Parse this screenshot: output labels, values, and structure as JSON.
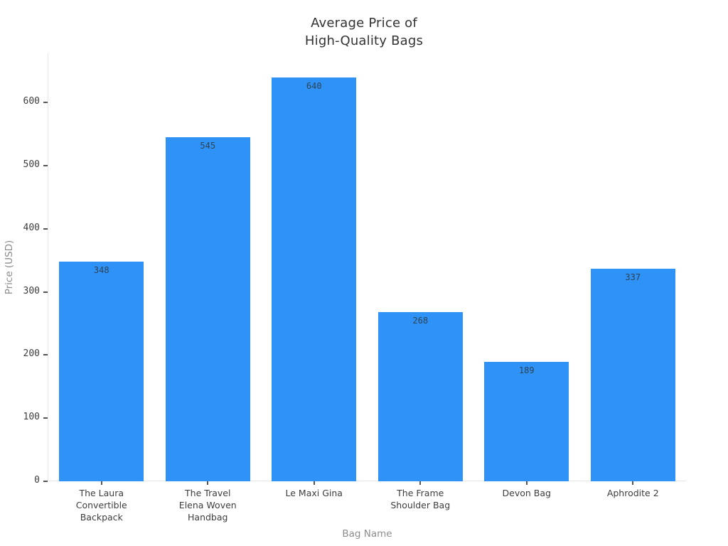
{
  "chart_data": {
    "type": "bar",
    "title": "Average Price of\nHigh-Quality Bags",
    "xlabel": "Bag Name",
    "ylabel": "Price (USD)",
    "categories": [
      "The Laura\nConvertible\nBackpack",
      "The Travel\nElena Woven\nHandbag",
      "Le Maxi Gina",
      "The Frame\nShoulder Bag",
      "Devon Bag",
      "Aphrodite 2"
    ],
    "values": [
      348,
      545,
      640,
      268,
      189,
      337
    ],
    "value_labels": [
      "348",
      "545",
      "640",
      "268",
      "189",
      "337"
    ],
    "yticks": [
      0,
      100,
      200,
      300,
      400,
      500,
      600
    ],
    "ylim": [
      0,
      678
    ],
    "grid": false,
    "legend": "none",
    "value_label_position": "inside-top",
    "colors": {
      "bar": "#2f92f6",
      "title_text": "#333333",
      "tick_text": "#3d3d3d",
      "value_text": "#2f4356",
      "axis_title_text": "#8c8c8c",
      "spine": "#e6e6e6",
      "tick_mark": "#555555"
    }
  }
}
